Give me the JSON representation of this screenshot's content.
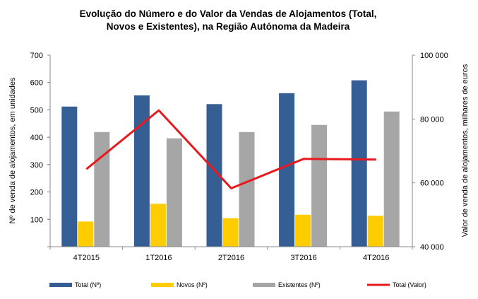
{
  "chart_data": {
    "type": "bar",
    "title_lines": [
      "Evolução do Número e do Valor da Vendas de Alojamentos (Total,",
      "Novos e Existentes), na Região Autónoma da Madeira"
    ],
    "categories": [
      "4T2015",
      "1T2016",
      "2T2016",
      "3T2016",
      "4T2016"
    ],
    "series": [
      {
        "name": "Total (Nº)",
        "type": "bar",
        "axis": "left",
        "color": "#355E95",
        "values": [
          512,
          553,
          521,
          561,
          608
        ]
      },
      {
        "name": "Novos (Nº)",
        "type": "bar",
        "axis": "left",
        "color": "#FFCC00",
        "values": [
          92,
          157,
          104,
          117,
          113
        ]
      },
      {
        "name": "Existentes (Nº)",
        "type": "bar",
        "axis": "left",
        "color": "#A6A6A6",
        "values": [
          419,
          396,
          419,
          445,
          494
        ]
      },
      {
        "name": "Total (Valor)",
        "type": "line",
        "axis": "right",
        "color": "#E8191D",
        "values": [
          64300,
          82700,
          58300,
          67500,
          67300
        ]
      }
    ],
    "ylabel": "Nº de venda de alojamentos, em unidades",
    "y2label": "Valor de venda de alojamentos, milhares de euros",
    "ylim": [
      0,
      700
    ],
    "y_ticks": [
      "100",
      "200",
      "300",
      "400",
      "500",
      "600",
      "700"
    ],
    "y2lim": [
      40000,
      100000
    ],
    "y2_ticks": [
      "40 000",
      "60 000",
      "80 000",
      "100 000"
    ],
    "grid": false,
    "legend_position": "bottom"
  }
}
